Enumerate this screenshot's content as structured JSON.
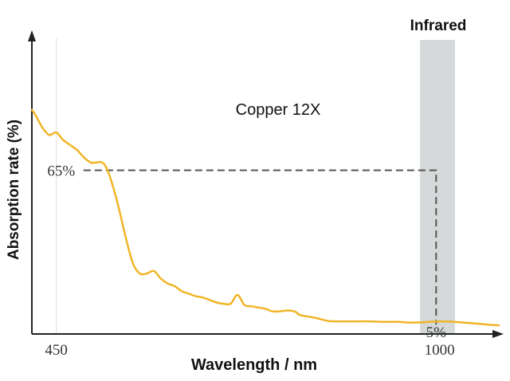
{
  "chart_data": {
    "type": "line",
    "title": "Copper 12X",
    "xlabel": "Wavelength / nm",
    "ylabel": "Absorption rate (%)",
    "x_ticks": [
      {
        "value": 450,
        "label": "450"
      },
      {
        "value": 1000,
        "label": "1000"
      }
    ],
    "xlim": [
      415,
      1085
    ],
    "ylim": [
      0,
      100
    ],
    "grid": false,
    "band": {
      "label": "Infrared",
      "from": 972,
      "to": 1022,
      "color": "#d6d9d9"
    },
    "series": [
      {
        "color": "#f0b527",
        "x": [
          415,
          420,
          430,
          440,
          450,
          460,
          470,
          480,
          490,
          500,
          505,
          520,
          535,
          550,
          560,
          570,
          580,
          590,
          600,
          610,
          620,
          630,
          640,
          650,
          660,
          670,
          680,
          690,
          700,
          710,
          720,
          730,
          740,
          750,
          760,
          770,
          780,
          785,
          790,
          795,
          800,
          820,
          840,
          855,
          865,
          880,
          900,
          920,
          940,
          960,
          980,
          1000,
          1020,
          1050,
          1070,
          1085
        ],
        "y": [
          89,
          87,
          82,
          79,
          80,
          77,
          75,
          73,
          70,
          68,
          68,
          67,
          55,
          38,
          28,
          24,
          24,
          25,
          22,
          20,
          19,
          17,
          16,
          15,
          14.5,
          13.5,
          12.5,
          12,
          12,
          15.5,
          11.5,
          11,
          10.5,
          10,
          9,
          9,
          9.3,
          9.3,
          9.1,
          8.5,
          7.5,
          6.5,
          5.2,
          5,
          5,
          5,
          5,
          4.8,
          4.8,
          4.5,
          4.7,
          5,
          4.8,
          4.2,
          3.7,
          3.4
        ]
      }
    ],
    "reference_lines": {
      "color": "#555555",
      "horizontal": {
        "label": "65%",
        "value": 65,
        "x_from": 480,
        "x_to": 995
      },
      "vertical": {
        "label": "5%",
        "value": 5,
        "x": 995
      }
    },
    "axis_color": "#222222"
  }
}
